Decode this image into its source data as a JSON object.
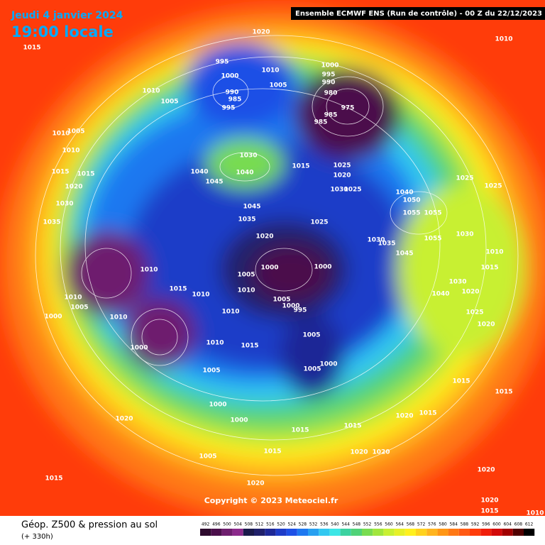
{
  "header": {
    "date": "Jeudi 4 janvier 2024",
    "time": "19:00 locale",
    "run": "Ensemble ECMWF ENS  (Run de contrôle)  -  00 Z du 22/12/2023"
  },
  "copyright": "Copyright © 2023 Meteociel.fr",
  "footer": {
    "title": "Géop. Z500 & pression au sol",
    "lead": "(+ 330h)"
  },
  "legend": {
    "values": [
      492,
      496,
      500,
      504,
      508,
      512,
      516,
      520,
      524,
      528,
      532,
      536,
      540,
      544,
      548,
      552,
      556,
      560,
      564,
      568,
      572,
      576,
      580,
      584,
      588,
      592,
      596,
      600,
      604,
      608,
      612
    ],
    "colors": [
      "#2d0a2d",
      "#4b0f4b",
      "#6e1e6e",
      "#8c2a8c",
      "#1a1a4a",
      "#20206a",
      "#1e2896",
      "#1e3cc8",
      "#1e50e6",
      "#1e78f0",
      "#28a0f0",
      "#32c8f0",
      "#3ce6e6",
      "#3cd2a0",
      "#50d278",
      "#78dc50",
      "#a0e63c",
      "#c8f032",
      "#e6f028",
      "#fff01e",
      "#ffd21e",
      "#ffb41e",
      "#ff9614",
      "#ff7814",
      "#ff5a14",
      "#ff3c0a",
      "#f01e0a",
      "#d20a0a",
      "#a00000",
      "#500000",
      "#000000"
    ]
  },
  "isobar_labels": [
    "1020",
    "1015",
    "1010",
    "995",
    "1000",
    "990",
    "985",
    "995",
    "1010",
    "1005",
    "1010",
    "1005",
    "1000",
    "995",
    "990",
    "980",
    "975",
    "985",
    "985",
    "1010",
    "1005",
    "1010",
    "1030",
    "1040",
    "1040",
    "1045",
    "1015",
    "1025",
    "1020",
    "1030",
    "1025",
    "1025",
    "1025",
    "1040",
    "1050",
    "1055",
    "1055",
    "1015",
    "1015",
    "1020",
    "1030",
    "1035",
    "1045",
    "1035",
    "1025",
    "1020",
    "1030",
    "1035",
    "1045",
    "1055",
    "1030",
    "1010",
    "1015",
    "1010",
    "1000",
    "1000",
    "1005",
    "1010",
    "1015",
    "1010",
    "1005",
    "995",
    "1000",
    "1010",
    "1005",
    "1000",
    "1010",
    "1000",
    "1010",
    "1005",
    "1015",
    "1010",
    "1000",
    "1005",
    "1005",
    "1000",
    "1000",
    "1020",
    "1020",
    "1015",
    "1015",
    "1020",
    "1040",
    "1020",
    "1030",
    "1025",
    "1015",
    "1020",
    "1015",
    "1005",
    "1015",
    "1020",
    "1020",
    "1020",
    "1015",
    "1015",
    "1010",
    "1020",
    "1015"
  ]
}
